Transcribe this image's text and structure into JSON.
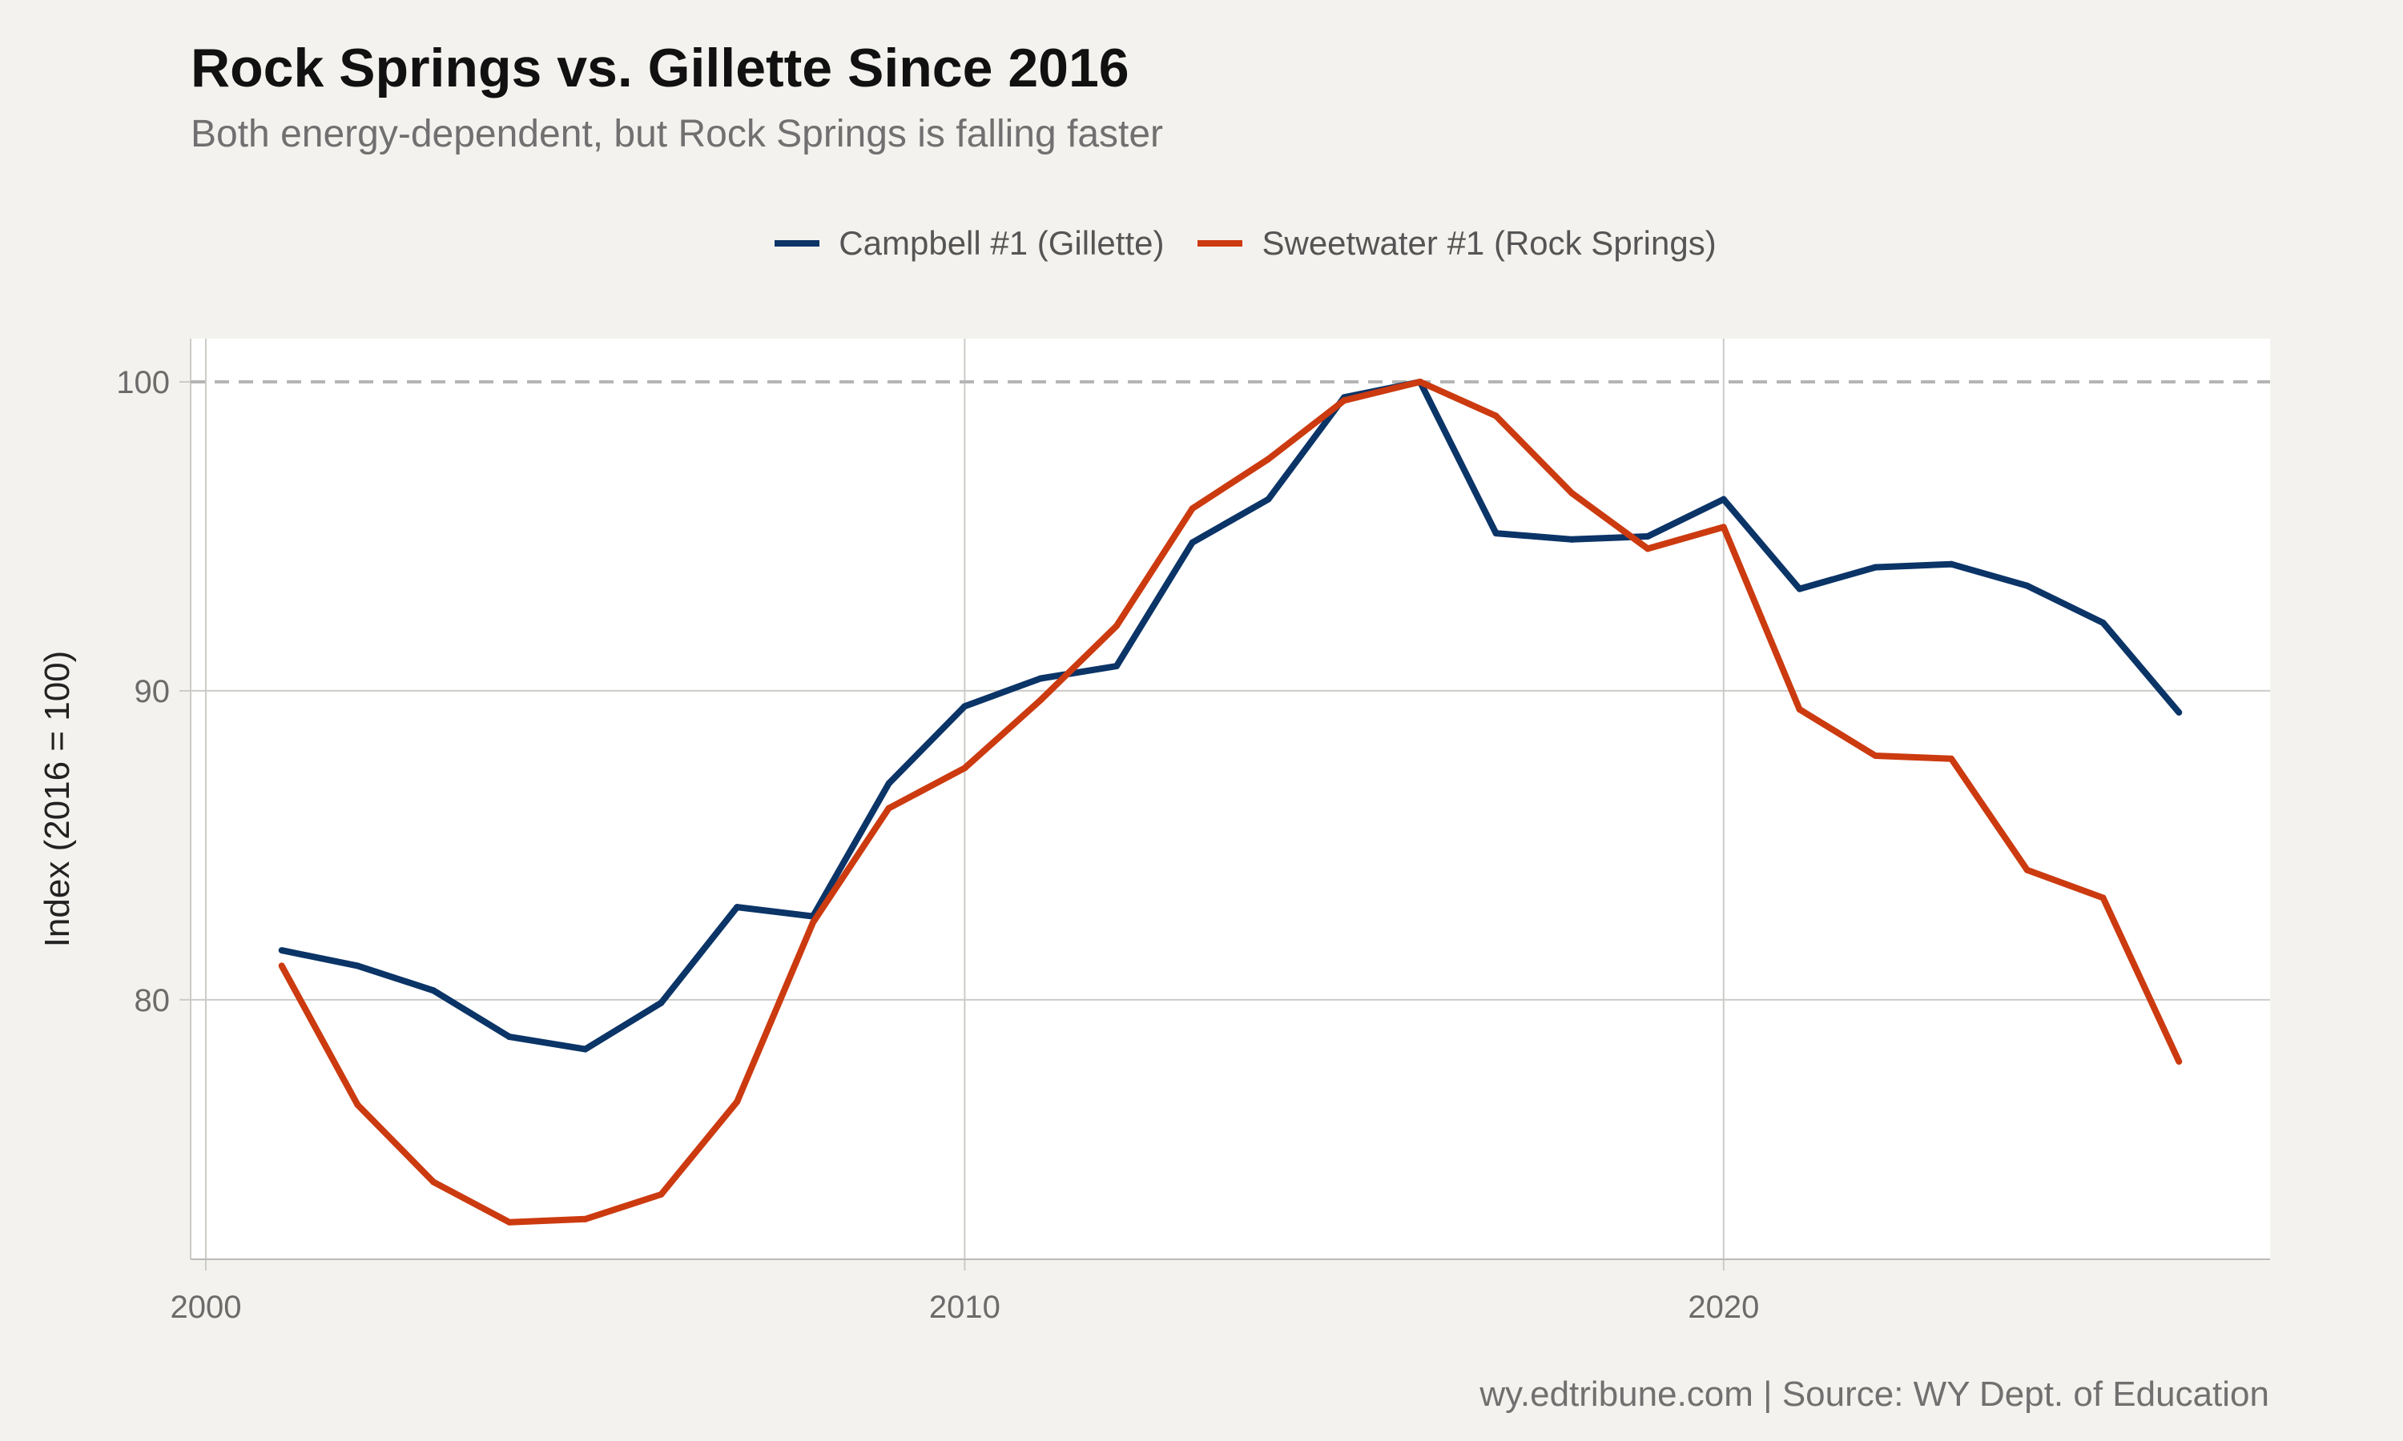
{
  "header": {
    "title": "Rock Springs vs. Gillette Since 2016",
    "subtitle": "Both energy-dependent, but Rock Springs is falling faster"
  },
  "caption": "wy.edtribune.com | Source: WY Dept. of Education",
  "colors": {
    "background": "#f4f2ee",
    "panel": "#ffffff",
    "campbell": "#0b3467",
    "sweetwater": "#cc3a10",
    "grid": "#cbcbc7",
    "reference": "#b5b5b5"
  },
  "chart_data": {
    "type": "line",
    "title": "Rock Springs vs. Gillette Since 2016",
    "subtitle": "Both energy-dependent, but Rock Springs is falling faster",
    "xlabel": "",
    "ylabel": "Index (2016 = 100)",
    "xlim": [
      1999.8,
      2027.2
    ],
    "ylim": [
      71.6,
      101.4
    ],
    "xticks": [
      2000,
      2010,
      2020
    ],
    "yticks": [
      80,
      90,
      100
    ],
    "grid": true,
    "legend_position": "top",
    "reference_line": {
      "y": 100,
      "style": "dashed"
    },
    "x": [
      2001,
      2002,
      2003,
      2004,
      2005,
      2006,
      2007,
      2008,
      2009,
      2010,
      2011,
      2012,
      2013,
      2014,
      2015,
      2016,
      2017,
      2018,
      2019,
      2020,
      2021,
      2022,
      2023,
      2024,
      2025,
      2026
    ],
    "series": [
      {
        "name": "Campbell #1 (Gillette)",
        "color": "#0b3467",
        "values": [
          81.6,
          81.1,
          80.3,
          78.8,
          78.4,
          79.9,
          83.0,
          82.7,
          87.0,
          89.5,
          90.4,
          90.8,
          94.8,
          96.2,
          99.5,
          100.0,
          95.1,
          94.9,
          95.0,
          96.2,
          93.3,
          94.0,
          94.1,
          93.4,
          92.2,
          89.3
        ]
      },
      {
        "name": "Sweetwater #1 (Rock Springs)",
        "color": "#cc3a10",
        "values": [
          81.1,
          76.6,
          74.1,
          72.8,
          72.9,
          73.7,
          76.7,
          82.5,
          86.2,
          87.5,
          89.7,
          92.1,
          95.9,
          97.5,
          99.4,
          100.0,
          98.9,
          96.4,
          94.6,
          95.3,
          89.4,
          87.9,
          87.8,
          84.2,
          83.3,
          78.0
        ]
      }
    ]
  }
}
